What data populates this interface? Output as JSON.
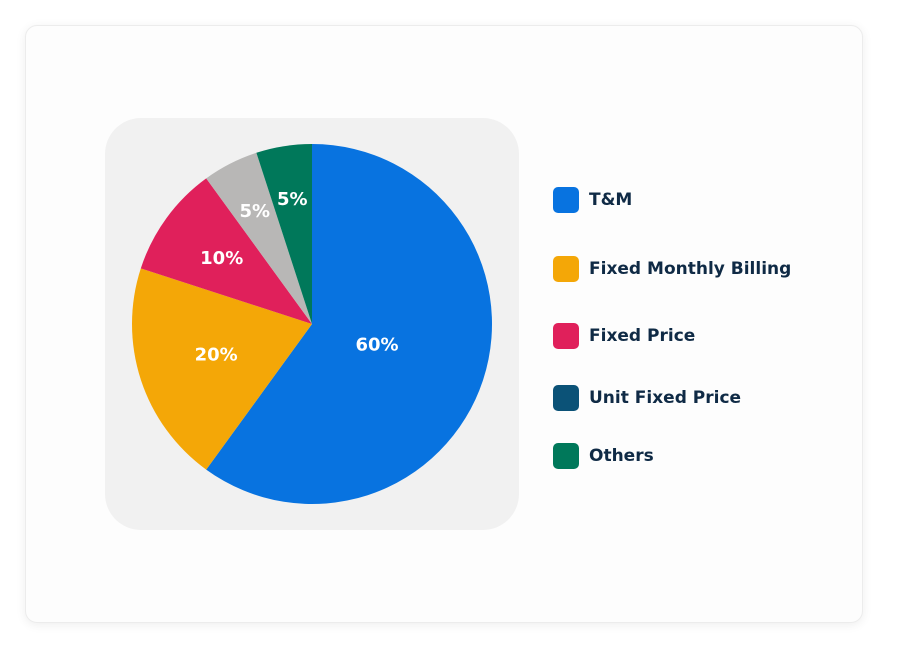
{
  "chart_data": {
    "type": "pie",
    "title": "",
    "slices": [
      {
        "name": "T&M",
        "value": 60,
        "label": "60%",
        "color": "#0873e0"
      },
      {
        "name": "Fixed Monthly Billing",
        "value": 20,
        "label": "20%",
        "color": "#f4a707"
      },
      {
        "name": "Fixed Price",
        "value": 10,
        "label": "10%",
        "color": "#e0205b"
      },
      {
        "name": "Unit Fixed Price",
        "value": 0,
        "label": "",
        "color": "#0b5277"
      },
      {
        "name": "Others",
        "value": 5,
        "label": "5%",
        "color": "#00785a"
      }
    ],
    "unlisted_slice": {
      "value": 5,
      "label": "5%",
      "color": "#b8b7b6"
    },
    "legend": {
      "position": "right",
      "entries": [
        "T&M",
        "Fixed Monthly Billing",
        "Fixed Price",
        "Unit Fixed Price",
        "Others"
      ]
    }
  }
}
